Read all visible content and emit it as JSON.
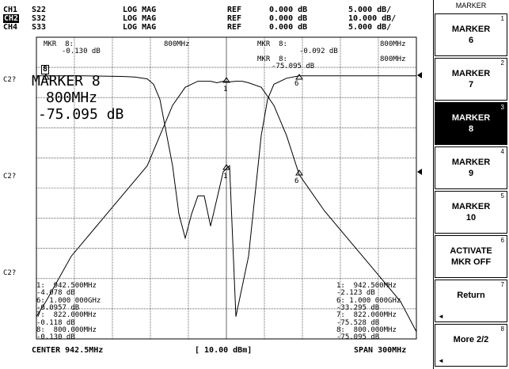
{
  "header": {
    "rows": [
      {
        "ch": "CH1",
        "param": "S22",
        "format": "LOG MAG",
        "ref_label": "REF",
        "ref": "0.000 dB",
        "scale": "5.000 dB/",
        "active": false
      },
      {
        "ch": "CH2",
        "param": "S32",
        "format": "LOG MAG",
        "ref_label": "REF",
        "ref": "0.000 dB",
        "scale": "10.000 dB/",
        "active": true
      },
      {
        "ch": "CH4",
        "param": "S33",
        "format": "LOG MAG",
        "ref_label": "REF",
        "ref": "0.000 dB",
        "scale": "5.000 dB/",
        "active": false
      }
    ]
  },
  "plot": {
    "marker_box": "8",
    "side_labels": [
      "C2?",
      "C2?",
      "C2?"
    ],
    "mkr_left": {
      "l1": "MKR  8:",
      "l1r": "800MHz",
      "l2": "-0.130 dB"
    },
    "mkr_right": {
      "l1": "MKR  8:",
      "l1r": "800MHz",
      "l2": "-0.092 dB",
      "l3": "MKR  8:",
      "l3r": "800MHz",
      "l4": "-75.095 dB"
    },
    "active_marker": {
      "title": "MARKER 8",
      "freq": "800MHz",
      "value": "-75.095 dB"
    },
    "trace_marker_labels": [
      "1",
      "6",
      "1",
      "6"
    ],
    "list_left": [
      "1:  942.500MHz",
      "-4.078 dB",
      "6: 1.000 000GHz",
      "-0.0957 dB",
      "7:  822.000MHz",
      "-0.118 dB",
      "8:  800.000MHz",
      "-0.130 dB"
    ],
    "list_right": [
      "1:  942.500MHz",
      "-2.123 dB",
      "6: 1.000 000GHz",
      "-33.295 dB",
      "7:  822.000MHz",
      "-75.528 dB",
      "8:  800.000MHz",
      "-75.095 dB"
    ]
  },
  "footer": {
    "center": "CENTER 942.5MHz",
    "power": "[ 10.00 dBm]",
    "span": "SPAN 300MHz"
  },
  "softkeys": {
    "title": "MARKER",
    "items": [
      {
        "label": "MARKER\n6",
        "num": "1",
        "active": false
      },
      {
        "label": "MARKER\n7",
        "num": "2",
        "active": false
      },
      {
        "label": "MARKER\n8",
        "num": "3",
        "active": true
      },
      {
        "label": "MARKER\n9",
        "num": "4",
        "active": false
      },
      {
        "label": "MARKER\n10",
        "num": "5",
        "active": false
      },
      {
        "label": "ACTIVATE\nMKR OFF",
        "num": "6",
        "active": false
      },
      {
        "label": "Return",
        "num": "7",
        "active": false,
        "arrow": "◄"
      },
      {
        "label": "More 2/2",
        "num": "8",
        "active": false,
        "arrow": "◄"
      }
    ]
  },
  "chart_data": {
    "type": "line",
    "x_center_mhz": 942.5,
    "x_span_mhz": 300,
    "xlim": [
      792.5,
      1092.5
    ],
    "grid": true,
    "series": [
      {
        "channel": "CH1",
        "values_note": "S22 trace",
        "x": [
          792.5,
          830,
          860,
          870,
          880,
          885,
          890,
          900,
          905,
          910,
          915,
          920,
          925,
          930,
          940,
          945,
          950,
          960,
          965,
          970,
          975,
          980,
          990,
          1000,
          1020,
          1050,
          1092.5
        ],
        "y": [
          -0.1,
          -0.1,
          -0.2,
          -0.3,
          -0.6,
          -1.5,
          -4,
          -15,
          -23,
          -27,
          -23,
          -20,
          -20,
          -25,
          -16,
          -15,
          -40,
          -30,
          -20,
          -10,
          -4,
          -1.5,
          -0.5,
          -0.1,
          -0.1,
          -0.1,
          -0.1
        ]
      },
      {
        "channel": "CH2",
        "values_note": "S32 trace",
        "x": [
          792.5,
          800,
          820,
          840,
          860,
          880,
          890,
          900,
          910,
          920,
          930,
          935,
          940,
          945,
          950,
          955,
          960,
          970,
          980,
          990,
          1000,
          1020,
          1040,
          1060,
          1080,
          1092.5
        ],
        "y": [
          -80,
          -75,
          -60,
          -50,
          -40,
          -30,
          -20,
          -10,
          -4,
          -2,
          -2,
          -2.5,
          -2,
          -2.2,
          -2,
          -2,
          -2.5,
          -4,
          -10,
          -20,
          -33,
          -45,
          -55,
          -65,
          -75,
          -85
        ]
      }
    ]
  }
}
